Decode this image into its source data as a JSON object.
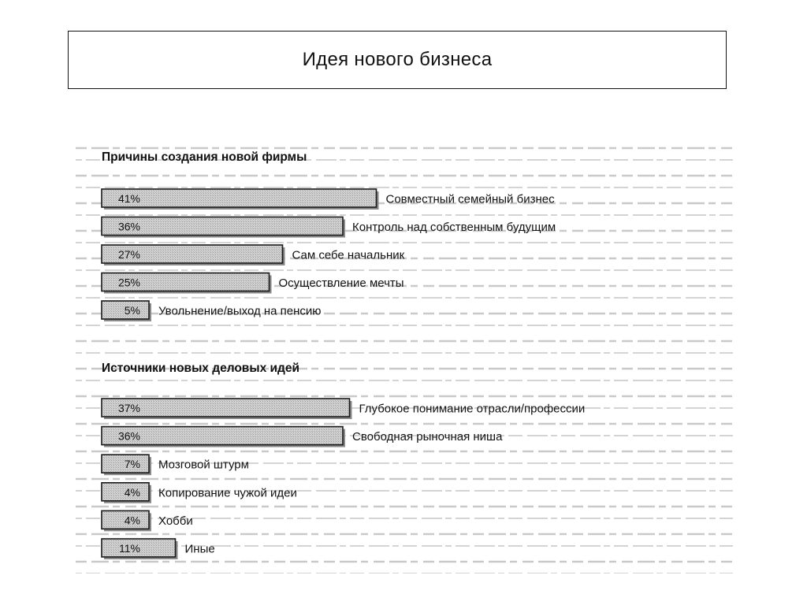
{
  "slide": {
    "title": "Идея нового бизнеса"
  },
  "chart_data": [
    {
      "type": "bar",
      "orientation": "horizontal",
      "title": "Причины создания новой фирмы",
      "categories": [
        "Совместный семейный бизнес",
        "Контроль над собственным будущим",
        "Сам себе начальник",
        "Осуществление мечты",
        "Увольнение/выход на пенсию"
      ],
      "values": [
        41,
        36,
        27,
        25,
        5
      ],
      "value_labels": [
        "41%",
        "36%",
        "27%",
        "25%",
        "5%"
      ],
      "unit": "%",
      "grid": false,
      "legend": "none"
    },
    {
      "type": "bar",
      "orientation": "horizontal",
      "title": "Источники новых деловых идей",
      "categories": [
        "Глубокое понимание отрасли/профессии",
        "Свободная рыночная ниша",
        "Мозговой штурм",
        "Копирование чужой идеи",
        "Хобби",
        "Иные"
      ],
      "values": [
        37,
        36,
        7,
        4,
        4,
        11
      ],
      "value_labels": [
        "37%",
        "36%",
        "7%",
        "4%",
        "4%",
        "11%"
      ],
      "unit": "%",
      "grid": false,
      "legend": "none"
    }
  ]
}
